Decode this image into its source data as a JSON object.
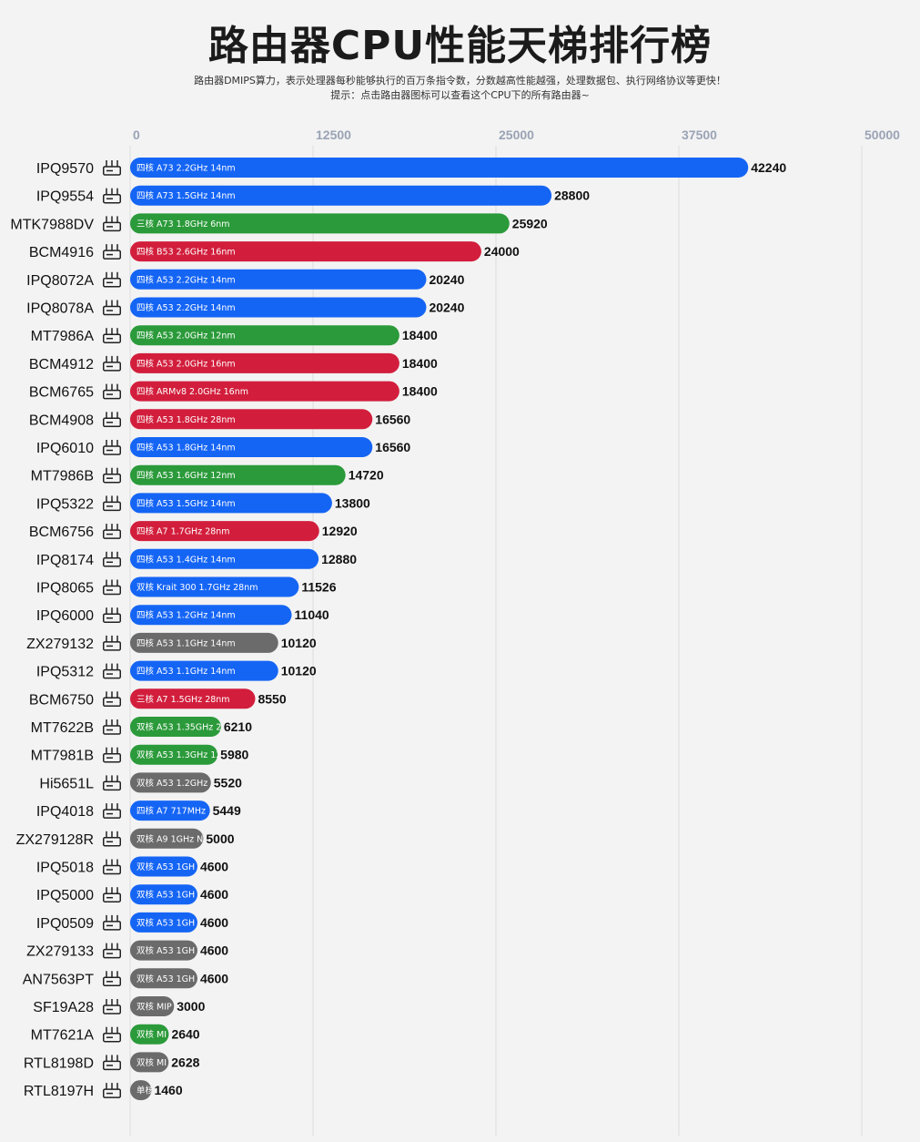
{
  "header": {
    "title": "路由器CPU性能天梯排行榜",
    "subtitle": "路由器DMIPS算力，表示处理器每秒能够执行的百万条指令数，分数越高性能越强，处理数据包、执行网络协议等更快！",
    "hint": "提示：点击路由器图标可以查看这个CPU下的所有路由器~"
  },
  "colors": {
    "blue": "#1565f5",
    "green": "#2b9a3a",
    "red": "#d21e3c",
    "gray": "#6b6b6b"
  },
  "chart_data": {
    "type": "bar",
    "orientation": "horizontal",
    "title": "路由器CPU性能天梯排行榜",
    "xlim": [
      0,
      50000
    ],
    "xticks": [
      0,
      12500,
      25000,
      37500,
      50000
    ],
    "xtick_labels": [
      "0",
      "12500",
      "25000",
      "37500",
      "50000"
    ],
    "grid": true,
    "rows": [
      {
        "name": "IPQ9570",
        "label": "四核 A73 2.2GHz 14nm",
        "value": 42240,
        "color": "blue"
      },
      {
        "name": "IPQ9554",
        "label": "四核 A73 1.5GHz 14nm",
        "value": 28800,
        "color": "blue"
      },
      {
        "name": "MTK7988DV",
        "label": "三核 A73 1.8GHz 6nm",
        "value": 25920,
        "color": "green"
      },
      {
        "name": "BCM4916",
        "label": "四核 B53 2.6GHz 16nm",
        "value": 24000,
        "color": "red"
      },
      {
        "name": "IPQ8072A",
        "label": "四核 A53 2.2GHz 14nm",
        "value": 20240,
        "color": "blue"
      },
      {
        "name": "IPQ8078A",
        "label": "四核 A53 2.2GHz 14nm",
        "value": 20240,
        "color": "blue"
      },
      {
        "name": "MT7986A",
        "label": "四核 A53 2.0GHz 12nm",
        "value": 18400,
        "color": "green"
      },
      {
        "name": "BCM4912",
        "label": "四核 A53 2.0GHz 16nm",
        "value": 18400,
        "color": "red"
      },
      {
        "name": "BCM6765",
        "label": "四核 ARMv8 2.0GHz 16nm",
        "value": 18400,
        "color": "red"
      },
      {
        "name": "BCM4908",
        "label": "四核 A53 1.8GHz 28nm",
        "value": 16560,
        "color": "red"
      },
      {
        "name": "IPQ6010",
        "label": "四核 A53 1.8GHz 14nm",
        "value": 16560,
        "color": "blue"
      },
      {
        "name": "MT7986B",
        "label": "四核 A53 1.6GHz 12nm",
        "value": 14720,
        "color": "green"
      },
      {
        "name": "IPQ5322",
        "label": "四核 A53 1.5GHz 14nm",
        "value": 13800,
        "color": "blue"
      },
      {
        "name": "BCM6756",
        "label": "四核 A7 1.7GHz 28nm",
        "value": 12920,
        "color": "red"
      },
      {
        "name": "IPQ8174",
        "label": "四核 A53 1.4GHz 14nm",
        "value": 12880,
        "color": "blue"
      },
      {
        "name": "IPQ8065",
        "label": "双核 Krait 300 1.7GHz 28nm",
        "value": 11526,
        "color": "blue"
      },
      {
        "name": "IPQ6000",
        "label": "四核 A53 1.2GHz 14nm",
        "value": 11040,
        "color": "blue"
      },
      {
        "name": "ZX279132",
        "label": "四核 A53 1.1GHz 14nm",
        "value": 10120,
        "color": "gray"
      },
      {
        "name": "IPQ5312",
        "label": "四核 A53 1.1GHz 14nm",
        "value": 10120,
        "color": "blue"
      },
      {
        "name": "BCM6750",
        "label": "三核 A7 1.5GHz 28nm",
        "value": 8550,
        "color": "red"
      },
      {
        "name": "MT7622B",
        "label": "双核 A53 1.35GHz 2",
        "value": 6210,
        "color": "green"
      },
      {
        "name": "MT7981B",
        "label": "双核 A53 1.3GHz 12",
        "value": 5980,
        "color": "green"
      },
      {
        "name": "Hi5651L",
        "label": "双核 A53 1.2GHz",
        "value": 5520,
        "color": "gray"
      },
      {
        "name": "IPQ4018",
        "label": "四核 A7 717MHz",
        "value": 5449,
        "color": "blue"
      },
      {
        "name": "ZX279128R",
        "label": "双核 A9 1GHz N",
        "value": 5000,
        "color": "gray"
      },
      {
        "name": "IPQ5018",
        "label": "双核 A53 1GH",
        "value": 4600,
        "color": "blue"
      },
      {
        "name": "IPQ5000",
        "label": "双核 A53 1GH",
        "value": 4600,
        "color": "blue"
      },
      {
        "name": "IPQ0509",
        "label": "双核 A53 1GH",
        "value": 4600,
        "color": "blue"
      },
      {
        "name": "ZX279133",
        "label": "双核 A53 1GH",
        "value": 4600,
        "color": "gray"
      },
      {
        "name": "AN7563PT",
        "label": "双核 A53 1GH",
        "value": 4600,
        "color": "gray"
      },
      {
        "name": "SF19A28",
        "label": "双核 MIP",
        "value": 3000,
        "color": "gray"
      },
      {
        "name": "MT7621A",
        "label": "双核 MI",
        "value": 2640,
        "color": "green"
      },
      {
        "name": "RTL8198D",
        "label": "双核 MI",
        "value": 2628,
        "color": "gray"
      },
      {
        "name": "RTL8197H",
        "label": "单核",
        "value": 1460,
        "color": "gray"
      }
    ]
  }
}
